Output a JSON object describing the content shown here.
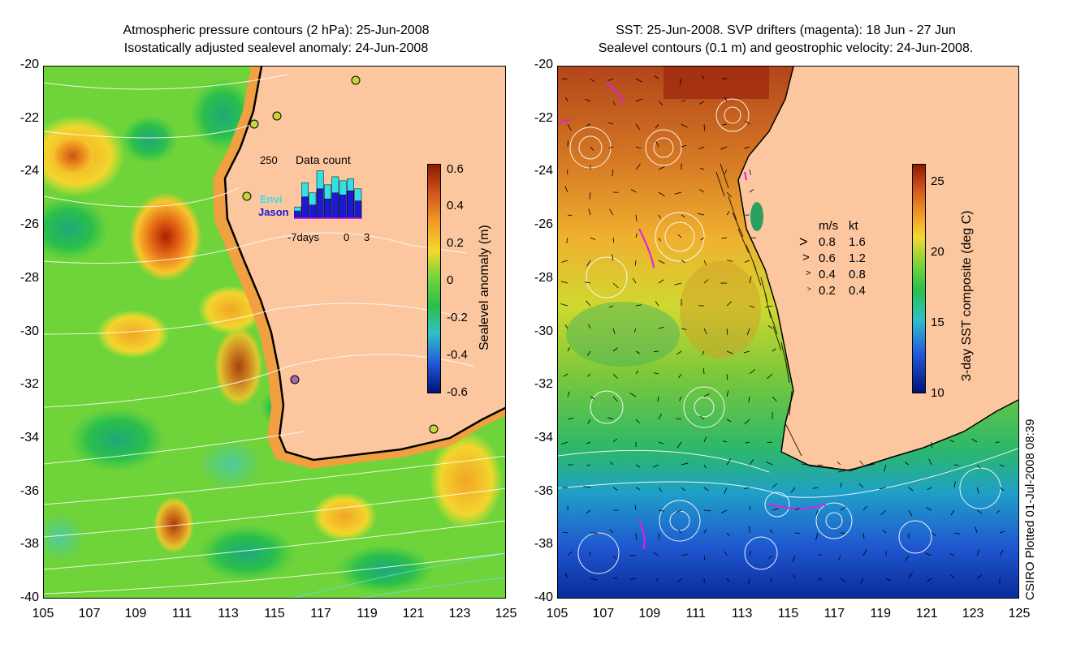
{
  "left_panel": {
    "title_line1": "Atmospheric pressure contours (2 hPa): 25-Jun-2008",
    "title_line2": "Isostatically adjusted sealevel anomaly: 24-Jun-2008",
    "colorbar_label": "Sealevel anomaly (m)",
    "colorbar_ticks": [
      "0.6",
      "0.4",
      "0.2",
      "0",
      "-0.2",
      "-0.4",
      "-0.6"
    ],
    "inset": {
      "title": "Data count",
      "y_tick": "250",
      "x_ticks": [
        "-7days",
        "0",
        "3"
      ],
      "legend_envi": "Envi",
      "legend_jason": "Jason",
      "envi_color": "#33e0e8",
      "jason_color": "#1a1ad6",
      "envi_counts": [
        60,
        180,
        130,
        240,
        170,
        210,
        190,
        200,
        150
      ],
      "jason_counts": [
        40,
        110,
        70,
        150,
        100,
        130,
        120,
        140,
        90
      ]
    }
  },
  "right_panel": {
    "title_line1": "SST: 25-Jun-2008. SVP drifters (magenta): 18 Jun - 27 Jun",
    "title_line2": "Sealevel contours (0.1 m) and geostrophic velocity: 24-Jun-2008.",
    "colorbar_label": "3-day SST composite (deg C)",
    "colorbar_ticks": [
      "25",
      "20",
      "15",
      "10"
    ],
    "velocity_legend": {
      "header_ms": "m/s",
      "header_kt": "kt",
      "rows": [
        {
          "ms": "0.8",
          "kt": "1.6"
        },
        {
          "ms": "0.6",
          "kt": "1.2"
        },
        {
          "ms": "0.4",
          "kt": "0.8"
        },
        {
          "ms": "0.2",
          "kt": "0.4"
        }
      ]
    }
  },
  "axes": {
    "y_ticks": [
      "-20",
      "-22",
      "-24",
      "-26",
      "-28",
      "-30",
      "-32",
      "-34",
      "-36",
      "-38",
      "-40"
    ],
    "x_ticks": [
      "105",
      "107",
      "109",
      "111",
      "113",
      "115",
      "117",
      "119",
      "121",
      "123",
      "125"
    ]
  },
  "credit": "CSIRO Plotted 01-Jul-2008 08:39",
  "colors": {
    "land": "#fcc79f",
    "anomaly_high": "#8b1a00",
    "anomaly_zero": "#5fd23a",
    "anomaly_low": "#00127a",
    "drifter": "#e020e0"
  }
}
